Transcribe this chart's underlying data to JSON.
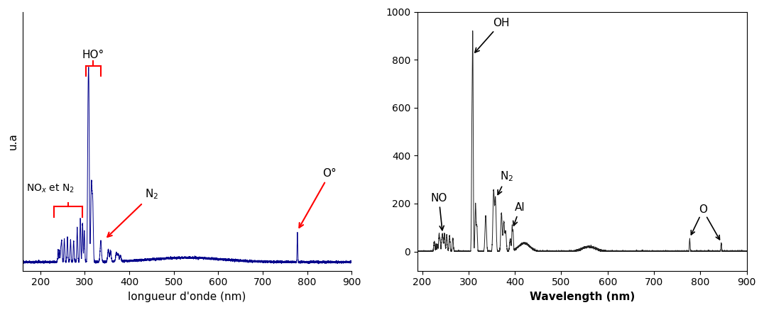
{
  "fig_width": 10.76,
  "fig_height": 4.37,
  "left_plot": {
    "xlim": [
      160,
      900
    ],
    "ylim": [
      -0.04,
      1.45
    ],
    "ylabel": "u.a",
    "xlabel": "longueur d'onde (nm)",
    "line_color": "#00008B",
    "xticks": [
      200,
      300,
      400,
      500,
      600,
      700,
      800,
      900
    ]
  },
  "right_plot": {
    "xlim": [
      190,
      900
    ],
    "ylim": [
      -80,
      1000
    ],
    "ylabel": "",
    "xlabel": "Wavelength (nm)",
    "line_color": "#222222",
    "yticks": [
      0,
      200,
      400,
      600,
      800,
      1000
    ],
    "xticks": [
      200,
      300,
      400,
      500,
      600,
      700,
      800,
      900
    ]
  },
  "background_color": "white"
}
